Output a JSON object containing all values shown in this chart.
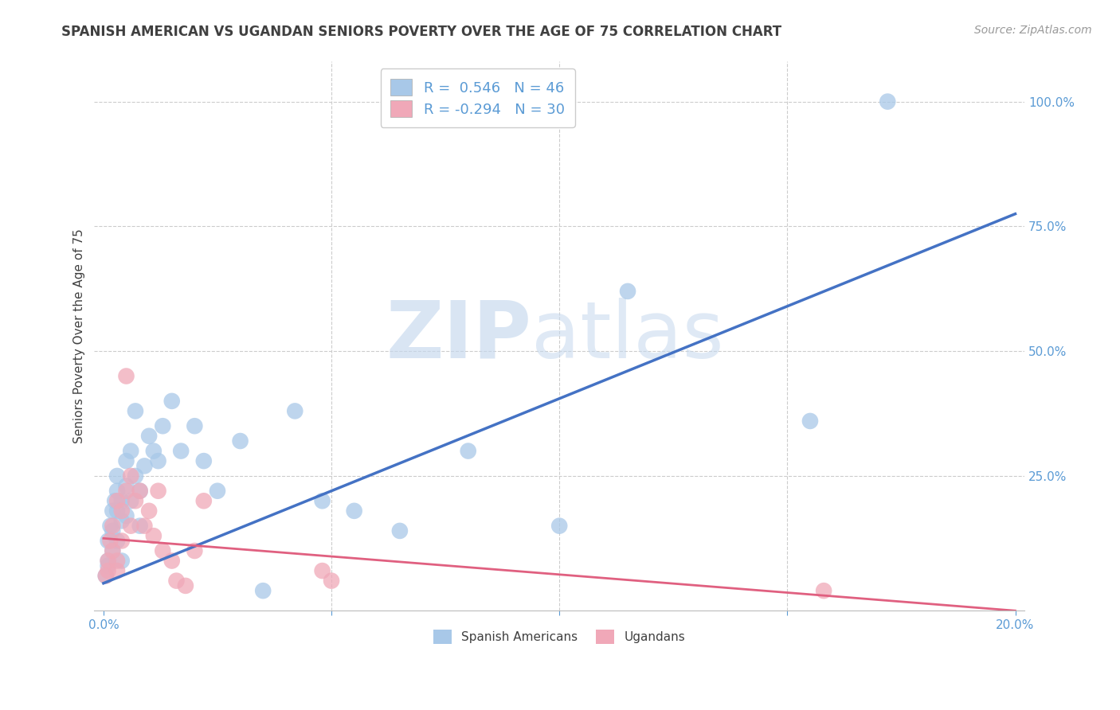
{
  "title": "SPANISH AMERICAN VS UGANDAN SENIORS POVERTY OVER THE AGE OF 75 CORRELATION CHART",
  "source": "Source: ZipAtlas.com",
  "ylabel": "Seniors Poverty Over the Age of 75",
  "xlim": [
    -0.002,
    0.202
  ],
  "ylim": [
    -0.02,
    1.08
  ],
  "blue_R": 0.546,
  "blue_N": 46,
  "pink_R": -0.294,
  "pink_N": 30,
  "blue_color": "#A8C8E8",
  "pink_color": "#F0A8B8",
  "blue_line_color": "#4472C4",
  "pink_line_color": "#E06080",
  "watermark_zip": "ZIP",
  "watermark_atlas": "atlas",
  "blue_scatter_x": [
    0.0005,
    0.001,
    0.001,
    0.001,
    0.0015,
    0.002,
    0.002,
    0.002,
    0.0025,
    0.003,
    0.003,
    0.003,
    0.003,
    0.004,
    0.004,
    0.004,
    0.005,
    0.005,
    0.005,
    0.006,
    0.006,
    0.007,
    0.007,
    0.008,
    0.008,
    0.009,
    0.01,
    0.011,
    0.012,
    0.013,
    0.015,
    0.017,
    0.02,
    0.022,
    0.025,
    0.03,
    0.035,
    0.042,
    0.048,
    0.055,
    0.065,
    0.08,
    0.1,
    0.115,
    0.155,
    0.172
  ],
  "blue_scatter_y": [
    0.05,
    0.08,
    0.12,
    0.07,
    0.15,
    0.18,
    0.1,
    0.14,
    0.2,
    0.22,
    0.18,
    0.25,
    0.12,
    0.16,
    0.2,
    0.08,
    0.23,
    0.17,
    0.28,
    0.2,
    0.3,
    0.25,
    0.38,
    0.22,
    0.15,
    0.27,
    0.33,
    0.3,
    0.28,
    0.35,
    0.4,
    0.3,
    0.35,
    0.28,
    0.22,
    0.32,
    0.02,
    0.38,
    0.2,
    0.18,
    0.14,
    0.3,
    0.15,
    0.62,
    0.36,
    1.0
  ],
  "pink_scatter_x": [
    0.0005,
    0.001,
    0.001,
    0.0015,
    0.002,
    0.002,
    0.003,
    0.003,
    0.003,
    0.004,
    0.004,
    0.005,
    0.005,
    0.006,
    0.006,
    0.007,
    0.008,
    0.009,
    0.01,
    0.011,
    0.012,
    0.013,
    0.015,
    0.016,
    0.018,
    0.02,
    0.022,
    0.048,
    0.05,
    0.158
  ],
  "pink_scatter_y": [
    0.05,
    0.06,
    0.08,
    0.12,
    0.1,
    0.15,
    0.08,
    0.2,
    0.06,
    0.18,
    0.12,
    0.45,
    0.22,
    0.15,
    0.25,
    0.2,
    0.22,
    0.15,
    0.18,
    0.13,
    0.22,
    0.1,
    0.08,
    0.04,
    0.03,
    0.1,
    0.2,
    0.06,
    0.04,
    0.02
  ],
  "blue_line_x0": 0.0,
  "blue_line_y0": 0.035,
  "blue_line_x1": 0.2,
  "blue_line_y1": 0.775,
  "pink_line_x0": 0.0,
  "pink_line_y0": 0.125,
  "pink_line_x1": 0.2,
  "pink_line_y1": -0.02,
  "background_color": "#FFFFFF",
  "grid_color": "#CCCCCC",
  "axis_color": "#5B9BD5",
  "title_color": "#404040",
  "source_color": "#999999",
  "title_fontsize": 12,
  "label_fontsize": 11,
  "tick_fontsize": 11,
  "legend_fontsize": 13
}
